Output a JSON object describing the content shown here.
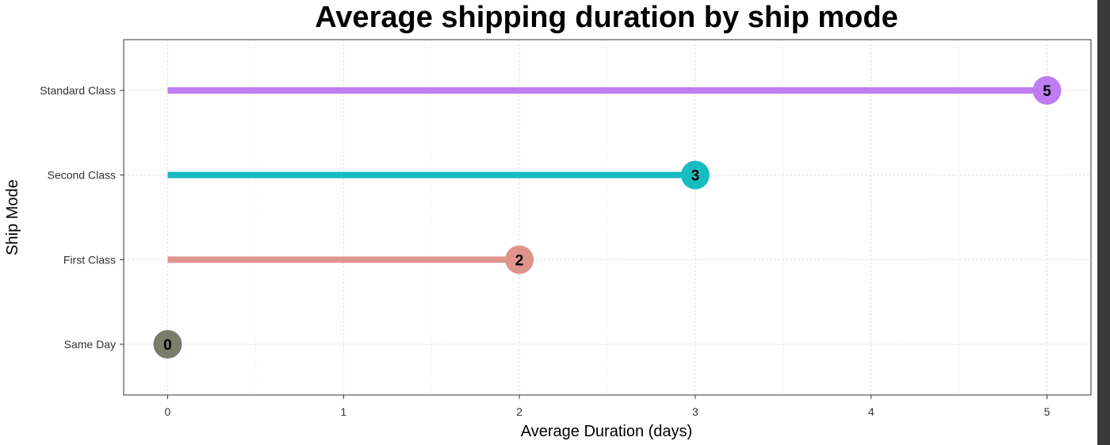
{
  "chart_data": {
    "type": "lollipop",
    "title": "Average shipping duration by ship mode",
    "xlabel": "Average Duration (days)",
    "ylabel": "Ship Mode",
    "xlim": [
      -0.25,
      5.25
    ],
    "x_ticks": [
      0,
      1,
      2,
      3,
      4,
      5
    ],
    "categories": [
      "Same Day",
      "First Class",
      "Second Class",
      "Standard Class"
    ],
    "values": [
      0,
      2,
      3,
      5
    ],
    "colors": [
      "#7a7d68",
      "#e0938c",
      "#17bcc0",
      "#c07df2"
    ],
    "grid": true,
    "legend": "none"
  },
  "colors": {
    "panel_border": "#333333",
    "grid": "#e0e0e0",
    "scrollbar": "#3a3a3a"
  }
}
